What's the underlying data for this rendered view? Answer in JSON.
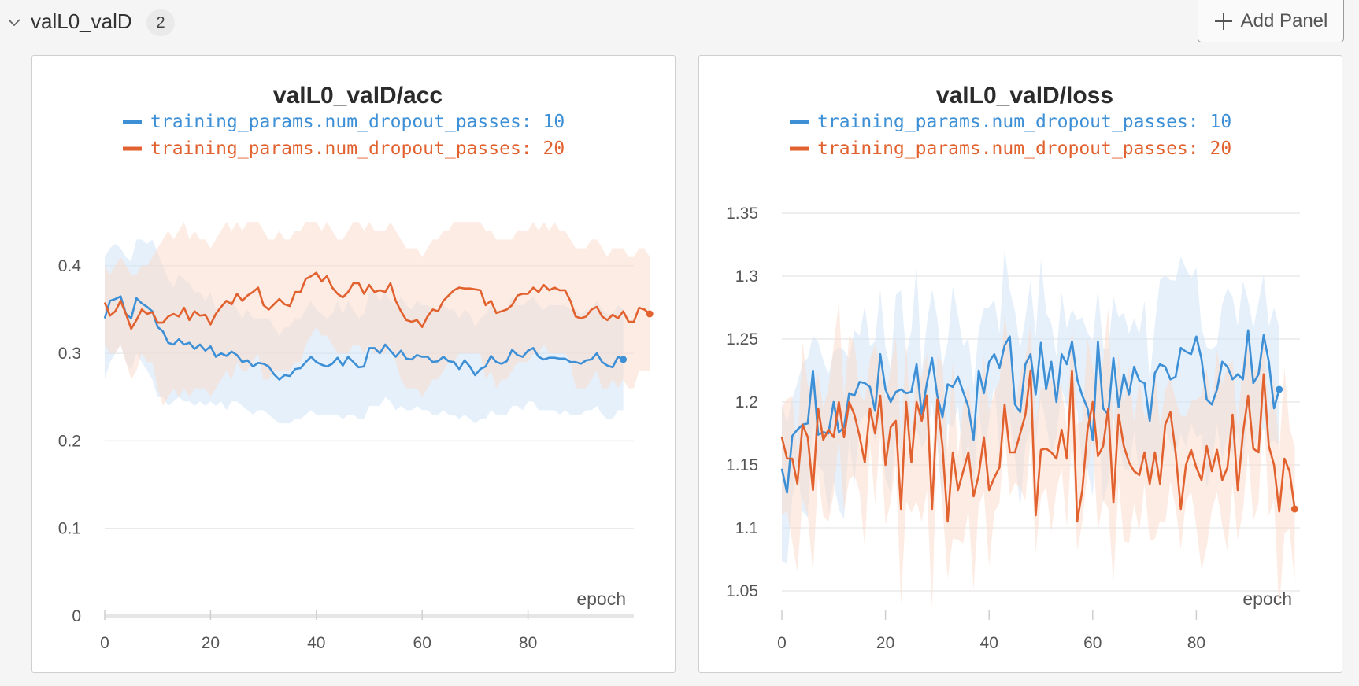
{
  "section": {
    "title": "valL0_valD",
    "count": "2"
  },
  "toolbar": {
    "add_panel_label": "Add Panel"
  },
  "icons": {
    "collapse": "chevron-down-icon",
    "add": "plus-icon"
  },
  "colors": {
    "blue": "#3d8fd6",
    "orange": "#e2622f",
    "blue_band": "#cfe4f7",
    "orange_band": "#fbdccd"
  },
  "chart_data": [
    {
      "type": "line",
      "title": "valL0_valD/acc",
      "xlabel": "epoch",
      "ylabel": "",
      "xlim": [
        0,
        100
      ],
      "ylim": [
        0,
        0.46
      ],
      "xticks": [
        "0",
        "20",
        "40",
        "60",
        "80"
      ],
      "yticks": [
        "0",
        "0.1",
        "0.2",
        "0.3",
        "0.4"
      ],
      "grid": true,
      "legend": "top-center",
      "series": [
        {
          "name": "training_params.num_dropout_passes: 10",
          "color": "#3d8fd6",
          "values": [
            0.34,
            0.36,
            0.362,
            0.365,
            0.345,
            0.34,
            0.363,
            0.357,
            0.353,
            0.348,
            0.33,
            0.325,
            0.312,
            0.31,
            0.316,
            0.31,
            0.312,
            0.305,
            0.31,
            0.303,
            0.308,
            0.296,
            0.3,
            0.297,
            0.302,
            0.298,
            0.29,
            0.292,
            0.285,
            0.289,
            0.288,
            0.285,
            0.276,
            0.27,
            0.275,
            0.274,
            0.282,
            0.283,
            0.29,
            0.296,
            0.29,
            0.287,
            0.285,
            0.288,
            0.295,
            0.286,
            0.296,
            0.29,
            0.284,
            0.285,
            0.306,
            0.306,
            0.3,
            0.31,
            0.303,
            0.296,
            0.303,
            0.294,
            0.293,
            0.298,
            0.296,
            0.296,
            0.29,
            0.291,
            0.296,
            0.291,
            0.29,
            0.282,
            0.292,
            0.285,
            0.275,
            0.282,
            0.285,
            0.297,
            0.29,
            0.288,
            0.291,
            0.304,
            0.298,
            0.296,
            0.303,
            0.306,
            0.296,
            0.293,
            0.295,
            0.295,
            0.294,
            0.294,
            0.29,
            0.29,
            0.288,
            0.292,
            0.293,
            0.3,
            0.29,
            0.286,
            0.284,
            0.296,
            0.293
          ],
          "band_upper": [
            0.41,
            0.42,
            0.425,
            0.42,
            0.41,
            0.405,
            0.43,
            0.43,
            0.425,
            0.43,
            0.415,
            0.4,
            0.385,
            0.375,
            0.39,
            0.385,
            0.38,
            0.37,
            0.37,
            0.36,
            0.37,
            0.35,
            0.355,
            0.36,
            0.36,
            0.35,
            0.34,
            0.35,
            0.34,
            0.34,
            0.34,
            0.34,
            0.33,
            0.32,
            0.33,
            0.33,
            0.34,
            0.34,
            0.35,
            0.36,
            0.35,
            0.345,
            0.34,
            0.345,
            0.36,
            0.345,
            0.36,
            0.35,
            0.34,
            0.345,
            0.37,
            0.37,
            0.36,
            0.37,
            0.36,
            0.355,
            0.365,
            0.355,
            0.35,
            0.36,
            0.355,
            0.355,
            0.35,
            0.35,
            0.355,
            0.35,
            0.35,
            0.34,
            0.35,
            0.345,
            0.33,
            0.34,
            0.345,
            0.355,
            0.35,
            0.345,
            0.35,
            0.365,
            0.355,
            0.355,
            0.36,
            0.365,
            0.355,
            0.35,
            0.355,
            0.355,
            0.355,
            0.355,
            0.35,
            0.35,
            0.345,
            0.35,
            0.35,
            0.36,
            0.35,
            0.345,
            0.345,
            0.355,
            0.35
          ],
          "band_lower": [
            0.27,
            0.29,
            0.3,
            0.31,
            0.29,
            0.28,
            0.3,
            0.29,
            0.28,
            0.27,
            0.25,
            0.25,
            0.24,
            0.245,
            0.25,
            0.245,
            0.245,
            0.24,
            0.245,
            0.24,
            0.245,
            0.24,
            0.245,
            0.235,
            0.245,
            0.245,
            0.24,
            0.235,
            0.23,
            0.235,
            0.235,
            0.23,
            0.225,
            0.22,
            0.22,
            0.22,
            0.225,
            0.225,
            0.23,
            0.235,
            0.23,
            0.23,
            0.23,
            0.23,
            0.23,
            0.225,
            0.23,
            0.23,
            0.225,
            0.225,
            0.24,
            0.24,
            0.24,
            0.25,
            0.245,
            0.235,
            0.24,
            0.235,
            0.235,
            0.24,
            0.235,
            0.235,
            0.23,
            0.23,
            0.235,
            0.23,
            0.23,
            0.225,
            0.23,
            0.225,
            0.22,
            0.225,
            0.225,
            0.235,
            0.23,
            0.23,
            0.23,
            0.24,
            0.24,
            0.235,
            0.245,
            0.245,
            0.235,
            0.235,
            0.235,
            0.235,
            0.23,
            0.235,
            0.23,
            0.23,
            0.23,
            0.235,
            0.235,
            0.24,
            0.23,
            0.225,
            0.225,
            0.235,
            0.235
          ]
        },
        {
          "name": "training_params.num_dropout_passes: 20",
          "color": "#e2622f",
          "values": [
            0.358,
            0.343,
            0.348,
            0.36,
            0.345,
            0.328,
            0.338,
            0.35,
            0.345,
            0.347,
            0.335,
            0.335,
            0.342,
            0.345,
            0.342,
            0.352,
            0.338,
            0.348,
            0.343,
            0.344,
            0.333,
            0.345,
            0.353,
            0.36,
            0.356,
            0.368,
            0.36,
            0.366,
            0.37,
            0.375,
            0.355,
            0.35,
            0.356,
            0.362,
            0.356,
            0.354,
            0.37,
            0.37,
            0.385,
            0.388,
            0.392,
            0.382,
            0.388,
            0.375,
            0.368,
            0.364,
            0.37,
            0.38,
            0.38,
            0.368,
            0.378,
            0.37,
            0.372,
            0.37,
            0.38,
            0.36,
            0.348,
            0.338,
            0.336,
            0.338,
            0.33,
            0.342,
            0.35,
            0.348,
            0.36,
            0.366,
            0.372,
            0.375,
            0.374,
            0.374,
            0.373,
            0.372,
            0.355,
            0.36,
            0.346,
            0.348,
            0.35,
            0.355,
            0.366,
            0.368,
            0.368,
            0.375,
            0.37,
            0.378,
            0.372,
            0.375,
            0.372,
            0.372,
            0.36,
            0.342,
            0.34,
            0.342,
            0.35,
            0.353,
            0.342,
            0.338,
            0.344,
            0.34,
            0.348,
            0.336,
            0.336,
            0.352,
            0.35,
            0.345
          ],
          "band_upper": [
            0.4,
            0.39,
            0.4,
            0.41,
            0.4,
            0.39,
            0.39,
            0.4,
            0.4,
            0.41,
            0.42,
            0.43,
            0.44,
            0.43,
            0.44,
            0.45,
            0.43,
            0.44,
            0.43,
            0.43,
            0.42,
            0.43,
            0.44,
            0.45,
            0.44,
            0.45,
            0.44,
            0.45,
            0.45,
            0.45,
            0.44,
            0.43,
            0.43,
            0.44,
            0.43,
            0.43,
            0.44,
            0.44,
            0.45,
            0.45,
            0.45,
            0.44,
            0.45,
            0.44,
            0.43,
            0.43,
            0.44,
            0.45,
            0.45,
            0.44,
            0.45,
            0.44,
            0.44,
            0.44,
            0.45,
            0.44,
            0.43,
            0.42,
            0.42,
            0.42,
            0.41,
            0.42,
            0.43,
            0.43,
            0.44,
            0.44,
            0.45,
            0.45,
            0.45,
            0.45,
            0.45,
            0.45,
            0.44,
            0.44,
            0.43,
            0.43,
            0.43,
            0.43,
            0.44,
            0.44,
            0.44,
            0.45,
            0.44,
            0.45,
            0.44,
            0.45,
            0.44,
            0.44,
            0.43,
            0.42,
            0.42,
            0.42,
            0.43,
            0.43,
            0.42,
            0.41,
            0.42,
            0.42,
            0.42,
            0.41,
            0.41,
            0.42,
            0.42,
            0.41
          ],
          "band_lower": [
            0.31,
            0.3,
            0.3,
            0.31,
            0.29,
            0.27,
            0.28,
            0.3,
            0.29,
            0.29,
            0.26,
            0.24,
            0.25,
            0.26,
            0.25,
            0.26,
            0.25,
            0.26,
            0.26,
            0.26,
            0.25,
            0.26,
            0.27,
            0.28,
            0.27,
            0.29,
            0.28,
            0.28,
            0.29,
            0.3,
            0.27,
            0.27,
            0.28,
            0.28,
            0.28,
            0.28,
            0.29,
            0.29,
            0.31,
            0.32,
            0.33,
            0.32,
            0.32,
            0.31,
            0.3,
            0.3,
            0.3,
            0.31,
            0.31,
            0.3,
            0.31,
            0.3,
            0.3,
            0.3,
            0.31,
            0.29,
            0.27,
            0.26,
            0.26,
            0.26,
            0.25,
            0.26,
            0.27,
            0.27,
            0.28,
            0.29,
            0.29,
            0.3,
            0.3,
            0.3,
            0.3,
            0.3,
            0.27,
            0.28,
            0.26,
            0.27,
            0.27,
            0.28,
            0.29,
            0.29,
            0.29,
            0.3,
            0.3,
            0.31,
            0.3,
            0.3,
            0.3,
            0.3,
            0.29,
            0.26,
            0.26,
            0.26,
            0.27,
            0.28,
            0.26,
            0.26,
            0.27,
            0.26,
            0.27,
            0.26,
            0.26,
            0.28,
            0.28,
            0.28
          ]
        }
      ]
    },
    {
      "type": "line",
      "title": "valL0_valD/loss",
      "xlabel": "epoch",
      "ylabel": "",
      "xlim": [
        0,
        100
      ],
      "ylim": [
        1.03,
        1.35
      ],
      "xticks": [
        "0",
        "20",
        "40",
        "60",
        "80"
      ],
      "yticks": [
        "1.05",
        "1.1",
        "1.15",
        "1.2",
        "1.25",
        "1.3",
        "1.35"
      ],
      "grid": true,
      "legend": "top-center",
      "series": [
        {
          "name": "training_params.num_dropout_passes: 10",
          "color": "#3d8fd6",
          "values": [
            1.147,
            1.128,
            1.173,
            1.178,
            1.182,
            1.183,
            1.225,
            1.174,
            1.176,
            1.175,
            1.2,
            1.176,
            1.18,
            1.207,
            1.205,
            1.216,
            1.215,
            1.212,
            1.193,
            1.238,
            1.21,
            1.2,
            1.208,
            1.21,
            1.207,
            1.208,
            1.23,
            1.19,
            1.215,
            1.235,
            1.205,
            1.188,
            1.214,
            1.212,
            1.22,
            1.208,
            1.196,
            1.17,
            1.225,
            1.207,
            1.232,
            1.238,
            1.227,
            1.245,
            1.252,
            1.198,
            1.192,
            1.23,
            1.238,
            1.206,
            1.247,
            1.21,
            1.232,
            1.2,
            1.238,
            1.23,
            1.248,
            1.218,
            1.205,
            1.195,
            1.17,
            1.248,
            1.195,
            1.19,
            1.235,
            1.196,
            1.222,
            1.206,
            1.228,
            1.217,
            1.215,
            1.185,
            1.223,
            1.23,
            1.228,
            1.218,
            1.22,
            1.243,
            1.24,
            1.238,
            1.252,
            1.234,
            1.202,
            1.198,
            1.21,
            1.232,
            1.228,
            1.218,
            1.222,
            1.218,
            1.257,
            1.215,
            1.222,
            1.253,
            1.232,
            1.195,
            1.21
          ]
        },
        {
          "name": "training_params.num_dropout_passes: 20",
          "color": "#e2622f",
          "values": [
            1.172,
            1.155,
            1.155,
            1.135,
            1.182,
            1.172,
            1.13,
            1.195,
            1.17,
            1.178,
            1.172,
            1.2,
            1.172,
            1.2,
            1.19,
            1.173,
            1.152,
            1.195,
            1.175,
            1.205,
            1.15,
            1.18,
            1.185,
            1.115,
            1.2,
            1.152,
            1.2,
            1.185,
            1.205,
            1.115,
            1.202,
            1.165,
            1.105,
            1.16,
            1.13,
            1.145,
            1.16,
            1.125,
            1.142,
            1.172,
            1.13,
            1.14,
            1.148,
            1.198,
            1.16,
            1.16,
            1.175,
            1.19,
            1.225,
            1.11,
            1.162,
            1.163,
            1.16,
            1.155,
            1.178,
            1.155,
            1.225,
            1.105,
            1.13,
            1.178,
            1.2,
            1.157,
            1.165,
            1.195,
            1.12,
            1.19,
            1.165,
            1.152,
            1.145,
            1.142,
            1.16,
            1.135,
            1.16,
            1.135,
            1.182,
            1.192,
            1.16,
            1.115,
            1.15,
            1.162,
            1.148,
            1.138,
            1.165,
            1.145,
            1.162,
            1.138,
            1.148,
            1.19,
            1.13,
            1.175,
            1.205,
            1.163,
            1.16,
            1.222,
            1.165,
            1.15,
            1.113,
            1.155,
            1.145,
            1.115
          ]
        }
      ]
    }
  ]
}
